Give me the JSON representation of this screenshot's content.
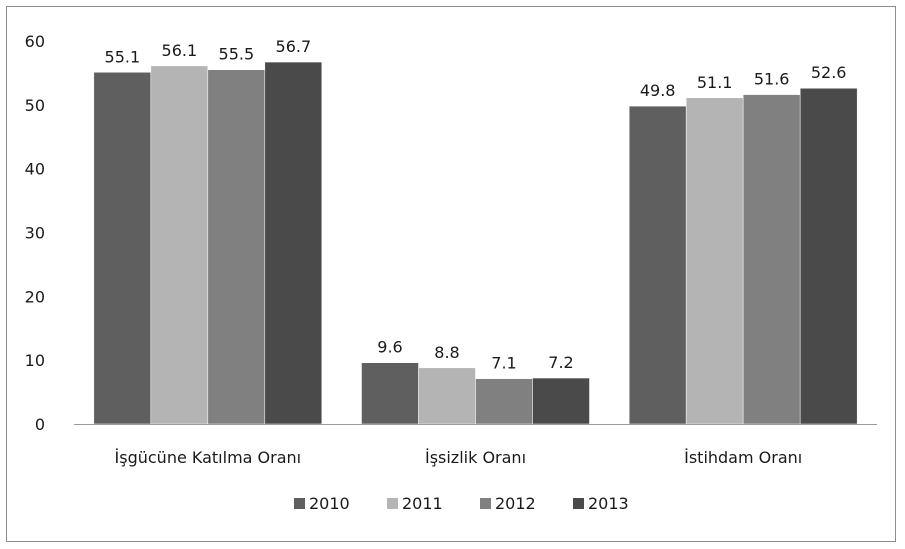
{
  "chart_data": {
    "type": "bar",
    "title": "",
    "xlabel": "",
    "ylabel": "",
    "categories": [
      "İşgücüne Katılma  Oranı",
      "İşsizlik Oranı",
      "İstihdam Oranı"
    ],
    "series": [
      {
        "name": "2010",
        "values": [
          55.1,
          9.6,
          49.8
        ],
        "color": "#5f5f5f"
      },
      {
        "name": "2011",
        "values": [
          56.1,
          8.8,
          51.1
        ],
        "color": "#b4b4b4"
      },
      {
        "name": "2012",
        "values": [
          55.5,
          7.1,
          51.6
        ],
        "color": "#808080"
      },
      {
        "name": "2013",
        "values": [
          56.7,
          7.2,
          52.6
        ],
        "color": "#4a4a4a"
      }
    ],
    "ylim": [
      0,
      60
    ],
    "yticks": [
      0,
      10,
      20,
      30,
      40,
      50,
      60
    ],
    "grid": false,
    "legend_position": "bottom"
  }
}
